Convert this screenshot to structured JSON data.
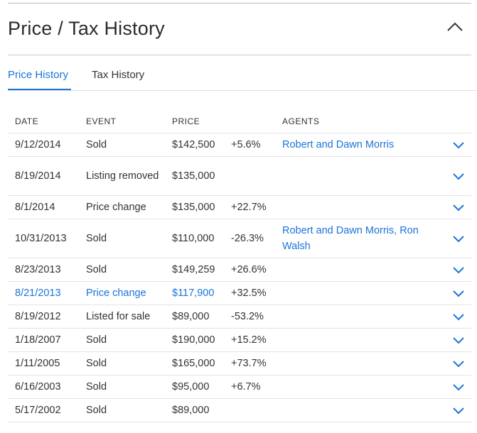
{
  "panel": {
    "title": "Price / Tax History"
  },
  "tabs": [
    {
      "label": "Price History",
      "active": true
    },
    {
      "label": "Tax History",
      "active": false
    }
  ],
  "table": {
    "headers": {
      "date": "DATE",
      "event": "EVENT",
      "price": "PRICE",
      "change": "",
      "agents": "AGENTS"
    },
    "rows": [
      {
        "date": "9/12/2014",
        "event": "Sold",
        "price": "$142,500",
        "change": "+5.6%",
        "change_sign": "pos",
        "agents": "Robert and Dawn Morris"
      },
      {
        "date": "8/19/2014",
        "event": "Listing removed",
        "price": "$135,000",
        "change": "",
        "change_sign": "",
        "agents": ""
      },
      {
        "date": "8/1/2014",
        "event": "Price change",
        "price": "$135,000",
        "change": "+22.7%",
        "change_sign": "pos",
        "agents": ""
      },
      {
        "date": "10/31/2013",
        "event": "Sold",
        "price": "$110,000",
        "change": "-26.3%",
        "change_sign": "neg",
        "agents": "Robert and Dawn Morris, Ron Walsh"
      },
      {
        "date": "8/23/2013",
        "event": "Sold",
        "price": "$149,259",
        "change": "+26.6%",
        "change_sign": "pos",
        "agents": ""
      },
      {
        "date": "8/21/2013",
        "event": "Price change",
        "price": "$117,900",
        "change": "+32.5%",
        "change_sign": "pos",
        "agents": ""
      },
      {
        "date": "8/19/2012",
        "event": "Listed for sale",
        "price": "$89,000",
        "change": "-53.2%",
        "change_sign": "neg",
        "agents": ""
      },
      {
        "date": "1/18/2007",
        "event": "Sold",
        "price": "$190,000",
        "change": "+15.2%",
        "change_sign": "pos",
        "agents": ""
      },
      {
        "date": "1/11/2005",
        "event": "Sold",
        "price": "$165,000",
        "change": "+73.7%",
        "change_sign": "pos",
        "agents": ""
      },
      {
        "date": "6/16/2003",
        "event": "Sold",
        "price": "$95,000",
        "change": "+6.7%",
        "change_sign": "pos",
        "agents": ""
      },
      {
        "date": "5/17/2002",
        "event": "Sold",
        "price": "$89,000",
        "change": "",
        "change_sign": "",
        "agents": ""
      }
    ]
  },
  "icons": {
    "collapse": "chevron-up-icon",
    "expand_row": "chevron-down-icon"
  },
  "colors": {
    "accent": "#1b74d9",
    "positive": "#21a236",
    "negative": "#e8443a"
  }
}
